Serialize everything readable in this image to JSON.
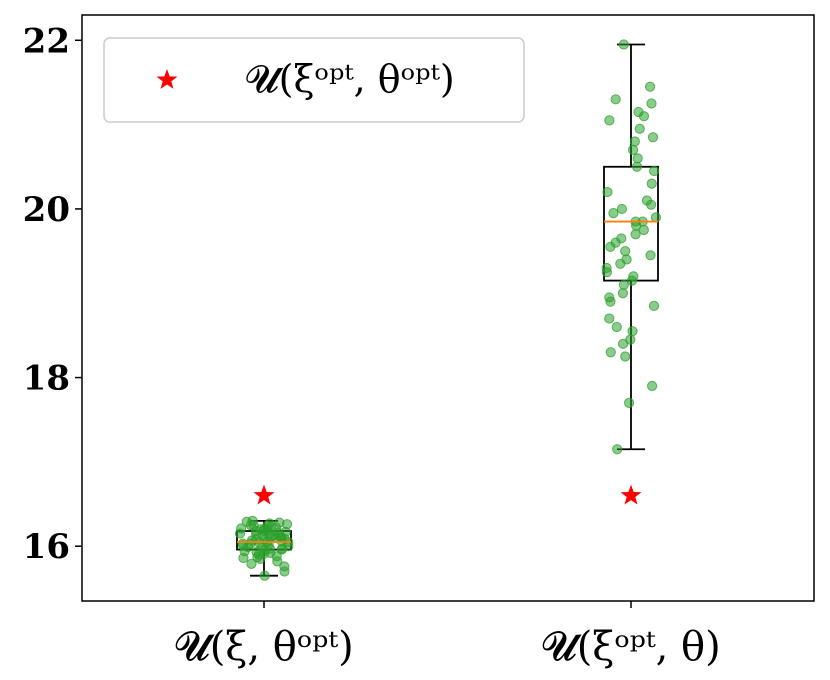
{
  "chart_data": {
    "type": "box",
    "title": "",
    "xlabel": "",
    "ylabel": "",
    "ylim": [
      15.35,
      22.3
    ],
    "yticks": [
      16,
      18,
      20,
      22
    ],
    "grid": false,
    "legend": {
      "position": "top-left",
      "entries": [
        {
          "label": "𝓤(ξᵒᵖᵗ, θᵒᵖᵗ)",
          "marker": "star",
          "color": "#ff0000"
        }
      ]
    },
    "categories": [
      "𝓤(ξ, θᵒᵖᵗ)",
      "𝓤(ξᵒᵖᵗ, θ)"
    ],
    "colors": {
      "box": "#000000",
      "median": "#ff7f0e",
      "points": "#2ca02c",
      "star": "#ff0000"
    },
    "boxes": [
      {
        "whisker_low": 15.65,
        "q1": 15.96,
        "median": 16.05,
        "q3": 16.18,
        "whisker_high": 16.3
      },
      {
        "whisker_low": 17.15,
        "q1": 19.15,
        "median": 19.85,
        "q3": 20.5,
        "whisker_high": 21.95
      }
    ],
    "star_values": [
      16.6,
      16.6
    ],
    "points": [
      [
        16.22,
        16.05,
        15.98,
        16.3,
        16.12,
        15.88,
        16.2,
        16.08,
        15.95,
        16.15,
        16.02,
        16.27,
        15.9,
        16.1,
        16.18,
        15.85,
        16.25,
        16.0,
        16.13,
        15.97,
        16.06,
        16.21,
        15.92,
        16.17,
        16.03,
        15.82,
        16.29,
        16.09,
        15.99,
        16.14,
        16.24,
        15.87,
        16.04,
        16.19,
        15.94,
        16.11,
        16.26,
        15.79,
        16.07,
        16.16,
        15.96,
        16.23,
        16.01,
        15.91,
        16.28,
        16.1,
        15.86,
        16.2,
        16.05,
        15.76,
        16.13,
        15.93,
        16.18,
        16.03,
        15.7,
        16.25,
        16.08,
        15.97,
        16.15,
        15.65
      ],
      [
        21.95,
        21.45,
        21.3,
        21.25,
        21.15,
        21.1,
        21.05,
        20.95,
        20.85,
        20.8,
        20.7,
        20.6,
        20.5,
        20.45,
        20.3,
        20.2,
        20.1,
        20.05,
        20.0,
        19.95,
        19.9,
        19.85,
        19.85,
        19.8,
        19.75,
        19.7,
        19.65,
        19.6,
        19.55,
        19.5,
        19.45,
        19.4,
        19.35,
        19.3,
        19.25,
        19.2,
        19.15,
        19.1,
        19.0,
        18.95,
        18.9,
        18.85,
        18.7,
        18.6,
        18.55,
        18.45,
        18.4,
        18.3,
        18.25,
        17.9,
        17.7,
        17.15
      ]
    ]
  }
}
